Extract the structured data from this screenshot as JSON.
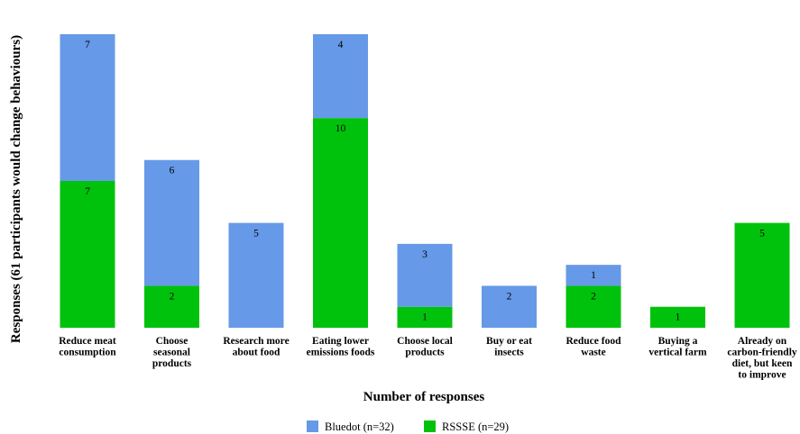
{
  "chart_data": {
    "type": "bar",
    "stacked": true,
    "xlabel": "Number of responses",
    "ylabel": "Responses (61 participants would change behaviours)",
    "ylim": [
      0,
      14
    ],
    "grid": false,
    "legend_position": "bottom",
    "categories": [
      [
        "Reduce meat",
        "consumption"
      ],
      [
        "Choose",
        "seasonal",
        "products"
      ],
      [
        "Research more",
        "about food"
      ],
      [
        "Eating lower",
        "emissions foods"
      ],
      [
        "Choose local",
        "products"
      ],
      [
        "Buy or eat",
        "insects"
      ],
      [
        "Reduce food",
        "waste"
      ],
      [
        "Buying a",
        "vertical farm"
      ],
      [
        "Already on",
        "carbon-friendly",
        "diet, but keen",
        "to improve"
      ]
    ],
    "series": [
      {
        "name": "RSSSE (n=29)",
        "color": "#00c20c",
        "values": [
          7,
          2,
          0,
          10,
          1,
          0,
          2,
          1,
          5
        ]
      },
      {
        "name": "Bluedot (n=32)",
        "color": "#6699e8",
        "values": [
          7,
          6,
          5,
          4,
          3,
          2,
          1,
          0,
          0
        ]
      }
    ],
    "legend_order": [
      1,
      0
    ]
  }
}
